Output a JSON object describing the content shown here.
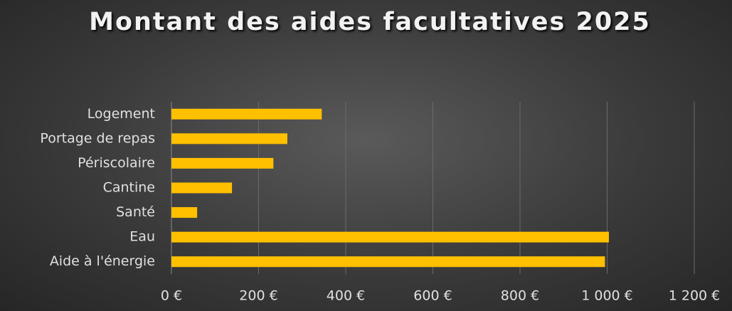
{
  "chart_data": {
    "type": "barh",
    "title": "Montant des aides facultatives 2025",
    "categories": [
      "Logement",
      "Portage de repas",
      "Périscolaire",
      "Cantine",
      "Santé",
      "Eau",
      "Aide à l'énergie"
    ],
    "values": [
      345,
      266,
      234,
      139,
      59,
      1004,
      995
    ],
    "color": "#ffc000",
    "xlim": [
      0,
      1200
    ],
    "xticks": [
      {
        "value": 0,
        "label": "0 €"
      },
      {
        "value": 200,
        "label": "200 €"
      },
      {
        "value": 400,
        "label": "400 €"
      },
      {
        "value": 600,
        "label": "600 €"
      },
      {
        "value": 800,
        "label": "800 €"
      },
      {
        "value": 1000,
        "label": "1 000 €"
      },
      {
        "value": 1200,
        "label": "1 200 €"
      }
    ],
    "grid": true
  }
}
